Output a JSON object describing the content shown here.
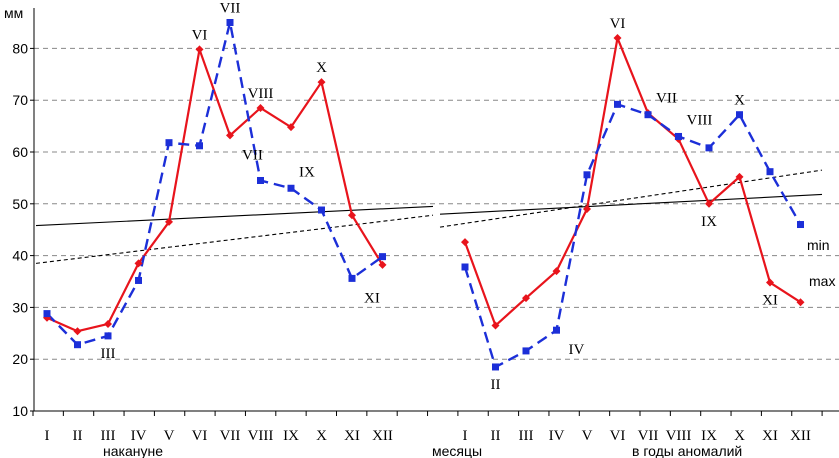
{
  "chart_data": {
    "type": "line",
    "ylabel": "мм",
    "ylim": [
      10,
      85
    ],
    "yticks": [
      10,
      20,
      30,
      40,
      50,
      60,
      70,
      80
    ],
    "grid": {
      "horizontal": true,
      "style": "dashed"
    },
    "categories": [
      "I",
      "II",
      "III",
      "IV",
      "V",
      "VI",
      "VII",
      "VIII",
      "IX",
      "X",
      "XI",
      "XII"
    ],
    "group_labels": {
      "before": "накануне",
      "middle": "месяцы",
      "anomaly": "в годы аномалий"
    },
    "legend": {
      "min": "min",
      "max": "max"
    },
    "colors": {
      "max": "#e8141c",
      "min": "#1c2fd8",
      "trend": "#000000",
      "grid": "#888888"
    },
    "groups": [
      {
        "key": "before",
        "series": [
          {
            "name": "max",
            "values": [
              28,
              25.4,
              26.8,
              38.5,
              46.5,
              79.8,
              63.2,
              68.5,
              64.8,
              73.5,
              47.8,
              38.2
            ]
          },
          {
            "name": "min",
            "values": [
              28.8,
              22.8,
              24.5,
              35.2,
              61.8,
              61.2,
              85,
              54.5,
              53,
              48.8,
              35.6,
              39.8
            ]
          }
        ],
        "trends": [
          {
            "series": "max",
            "start": 45.8,
            "end": 49.5
          },
          {
            "series": "min",
            "start": 38.5,
            "end": 47.8
          }
        ],
        "point_labels": [
          {
            "series": "max",
            "index": 5,
            "text": "VI",
            "pos": "above"
          },
          {
            "series": "min",
            "index": 6,
            "text": "VII",
            "pos": "above"
          },
          {
            "series": "max",
            "index": 6,
            "text": "VII",
            "pos": "right-below"
          },
          {
            "series": "max",
            "index": 7,
            "text": "VIII",
            "pos": "above"
          },
          {
            "series": "min",
            "index": 8,
            "text": "IX",
            "pos": "right-above"
          },
          {
            "series": "max",
            "index": 9,
            "text": "X",
            "pos": "above"
          },
          {
            "series": "min",
            "index": 10,
            "text": "XI",
            "pos": "right-below"
          },
          {
            "series": "min",
            "index": 2,
            "text": "III",
            "pos": "below"
          }
        ]
      },
      {
        "key": "anomaly",
        "series": [
          {
            "name": "max",
            "values": [
              42.6,
              26.5,
              31.8,
              37,
              49,
              82,
              67.5,
              62.5,
              50,
              55.2,
              34.8,
              31
            ]
          },
          {
            "name": "min",
            "values": [
              37.8,
              18.5,
              21.6,
              25.6,
              55.6,
              69.2,
              67.2,
              63,
              60.8,
              67.2,
              56.2,
              46
            ]
          }
        ],
        "trends": [
          {
            "series": "max",
            "start": 48,
            "end": 51.8
          },
          {
            "series": "min",
            "start": 45.5,
            "end": 56.5
          }
        ],
        "point_labels": [
          {
            "series": "max",
            "index": 5,
            "text": "VI",
            "pos": "above"
          },
          {
            "series": "min",
            "index": 6,
            "text": "VII",
            "pos": "right-above"
          },
          {
            "series": "min",
            "index": 7,
            "text": "VIII",
            "pos": "right-above"
          },
          {
            "series": "min",
            "index": 9,
            "text": "X",
            "pos": "above"
          },
          {
            "series": "max",
            "index": 8,
            "text": "IX",
            "pos": "below"
          },
          {
            "series": "max",
            "index": 10,
            "text": "XI",
            "pos": "below"
          },
          {
            "series": "min",
            "index": 1,
            "text": "II",
            "pos": "below"
          },
          {
            "series": "min",
            "index": 3,
            "text": "IV",
            "pos": "right-below"
          }
        ]
      }
    ]
  }
}
